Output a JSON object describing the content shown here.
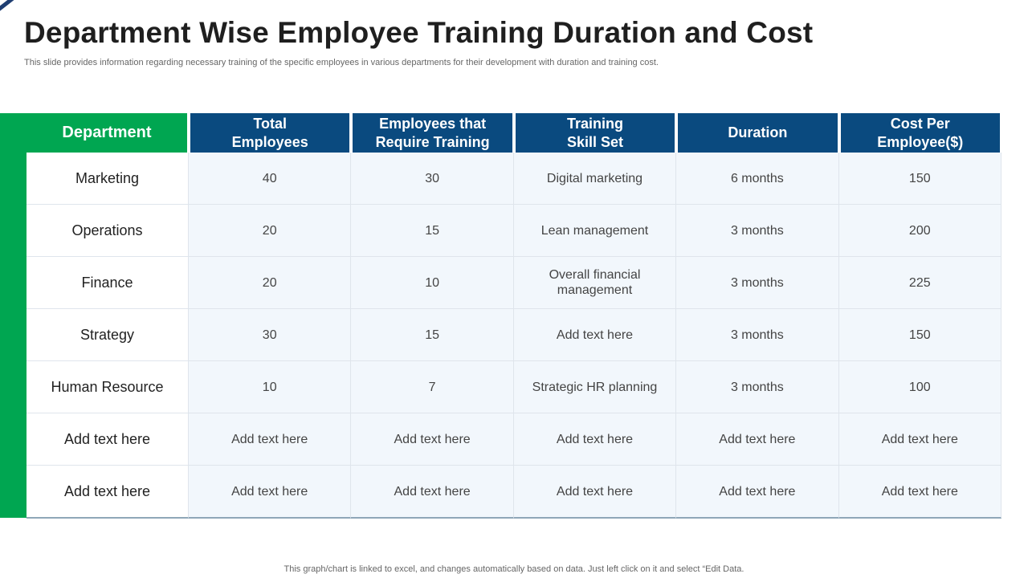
{
  "header": {
    "title": "Department Wise Employee Training Duration and Cost",
    "subtitle": "This slide provides information regarding necessary training of the specific employees in various departments for their development with duration and training cost."
  },
  "table": {
    "columns": [
      [
        "Department"
      ],
      [
        "Total",
        "Employees"
      ],
      [
        "Employees that",
        "Require Training"
      ],
      [
        "Training",
        "Skill Set"
      ],
      [
        "Duration"
      ],
      [
        "Cost Per",
        "Employee($)"
      ]
    ],
    "rows": [
      [
        "Marketing",
        "40",
        "30",
        "Digital marketing",
        "6 months",
        "150"
      ],
      [
        "Operations",
        "20",
        "15",
        "Lean management",
        "3 months",
        "200"
      ],
      [
        "Finance",
        "20",
        "10",
        "Overall financial\nmanagement",
        "3 months",
        "225"
      ],
      [
        "Strategy",
        "30",
        "15",
        "Add text here",
        "3 months",
        "150"
      ],
      [
        "Human Resource",
        "10",
        "7",
        "Strategic HR planning",
        "3 months",
        "100"
      ],
      [
        "Add text here",
        "Add text here",
        "Add text here",
        "Add text here",
        "Add text here",
        "Add text here"
      ],
      [
        "Add text here",
        "Add text here",
        "Add text here",
        "Add text here",
        "Add text here",
        "Add text here"
      ]
    ]
  },
  "footer": {
    "note": "This graph/chart is linked to excel, and changes automatically based on data. Just left click on it and select “Edit Data."
  },
  "colors": {
    "accent_green": "#00a651",
    "header_blue": "#0a4a7f",
    "cell_bg": "#f2f7fc"
  }
}
